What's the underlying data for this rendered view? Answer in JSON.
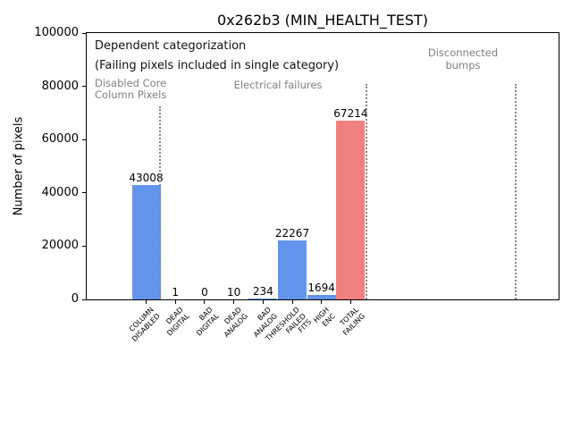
{
  "window": {
    "title": "0x262b3 (MIN_HEALTH_TEST)"
  },
  "chart_data": {
    "type": "bar",
    "title": "0x262b3 (MIN_HEALTH_TEST)",
    "xlabel": "",
    "ylabel": "Number of pixels",
    "ylim": [
      0,
      100000
    ],
    "yticks": [
      0,
      20000,
      40000,
      60000,
      80000,
      100000
    ],
    "grid": false,
    "legend": "none",
    "categories": [
      "COLUMN\nDISABLED",
      "DEAD\nDIGITAL",
      "BAD\nDIGITAL",
      "DEAD\nANALOG",
      "BAD\nANALOG",
      "THRESHOLD\nFAILED\nFITS",
      "HIGH\nENC",
      "TOTAL\nFAILING"
    ],
    "values": [
      43008,
      1,
      0,
      10,
      234,
      22267,
      1694,
      67214
    ],
    "bar_colors": [
      "#6495ed",
      "#6495ed",
      "#6495ed",
      "#6495ed",
      "#6495ed",
      "#6495ed",
      "#6495ed",
      "#f08080"
    ],
    "value_labels": [
      "43008",
      "1",
      "0",
      "10",
      "234",
      "22267",
      "1694",
      "67214"
    ],
    "annotations": {
      "header_line1": "Dependent categorization",
      "header_line2": "(Failing pixels included in single category)",
      "region_disabled": "Disabled Core\nColumn Pixels",
      "region_electrical": "Electrical failures",
      "region_disconnected": "Disconnected\nbumps"
    },
    "divider_style": "dotted",
    "divider_color": "#888888",
    "colors": {
      "default_bar": "#6495ed",
      "total_bar": "#f08080",
      "annotation_gray": "#808080",
      "text": "#000000",
      "background": "#ffffff"
    }
  }
}
